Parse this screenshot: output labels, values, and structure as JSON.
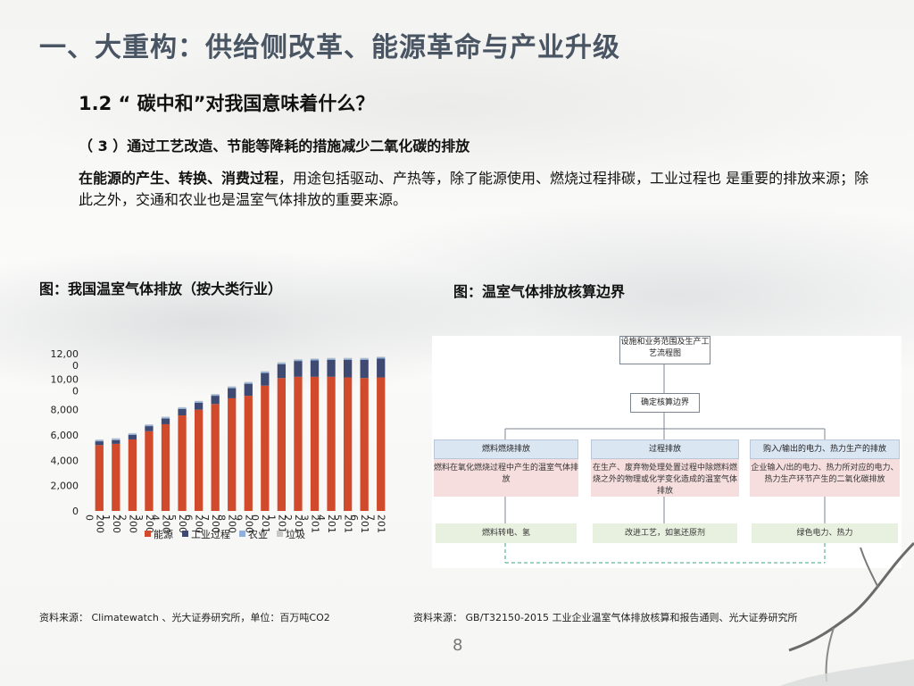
{
  "header": {
    "title": "一、大重构：供给侧改革、能源革命与产业升级",
    "subtitle": "1.2 “ 碳中和”对我国意味着什么？"
  },
  "section": {
    "heading": "（ 3 ）通过工艺改造、节能等降耗的措施减少二氧化碳的排放",
    "para_bold": "在能源的产生、转换、消费过程",
    "para_rest": "，用途包括驱动、产热等，除了能源使用、燃烧过程排碳，工业过程也 是重要的排放来源；除此之外，交通和农业也是温室气体排放的重要来源。"
  },
  "figure1": {
    "title": "图：我国温室气体排放（按大类行业）",
    "source": "资料来源：  Climatewatch 、光大证券研究所，单位：百万吨CO2"
  },
  "figure2": {
    "title": "图：温室气体排放核算边界",
    "source": "资料来源：  GB/T32150-2015 工业企业温室气体排放核算和报告通则、光大证券研究所"
  },
  "page_number": "8",
  "chart_data": {
    "type": "bar",
    "stacked": true,
    "ylim": [
      0,
      12000
    ],
    "yticks": [
      "0",
      "2,000",
      "4,000",
      "6,000",
      "8,000",
      "10,00 0",
      "12,00 0"
    ],
    "categories": [
      "200 0",
      "200 1",
      "200 2",
      "200 3",
      "200 4",
      "200 5",
      "200 6",
      "200 7",
      "200 8",
      "200 9",
      "201 0",
      "201 1",
      "201 2",
      "201 3",
      "201 4",
      "201 5",
      "201 6",
      "201 7"
    ],
    "series": [
      {
        "name": "能源",
        "color": "#d14a2c",
        "values": [
          5200,
          5300,
          5650,
          6300,
          6850,
          7550,
          8000,
          8450,
          8900,
          9100,
          9900,
          10500,
          10600,
          10600,
          10600,
          10550,
          10500,
          10550
        ]
      },
      {
        "name": "工业过程",
        "color": "#3f4a72",
        "values": [
          300,
          300,
          350,
          400,
          450,
          500,
          550,
          650,
          800,
          950,
          1000,
          1100,
          1250,
          1300,
          1350,
          1400,
          1450,
          1500
        ]
      },
      {
        "name": "农业",
        "color": "#8fb0d8",
        "values": [
          100,
          100,
          100,
          100,
          100,
          100,
          100,
          100,
          100,
          100,
          100,
          100,
          100,
          100,
          100,
          100,
          100,
          100
        ]
      },
      {
        "name": "垃圾",
        "color": "#c7c7c7",
        "values": [
          50,
          50,
          50,
          50,
          50,
          50,
          50,
          50,
          50,
          50,
          50,
          50,
          50,
          50,
          50,
          50,
          50,
          50
        ]
      }
    ]
  },
  "diagram": {
    "top_box": "设施和业务范围及生产工艺流程图",
    "mid_box": "确定核算边界",
    "columns": [
      {
        "header": "燃料燃烧排放",
        "desc": "燃料在氧化燃烧过程中产生的温室气体排放",
        "action": "燃料转电、氢"
      },
      {
        "header": "过程排放",
        "desc": "在生产、废弃物处理处置过程中除燃料燃烧之外的物理或化学变化造成的温室气体排放",
        "action": "改进工艺，如氢还原剂"
      },
      {
        "header": "购入/输出的电力、热力生产的排放",
        "desc": "企业输入/出的电力、热力所对应的电力、热力生产环节产生的二氧化碳排放",
        "action": "绿色电力、热力"
      }
    ]
  }
}
